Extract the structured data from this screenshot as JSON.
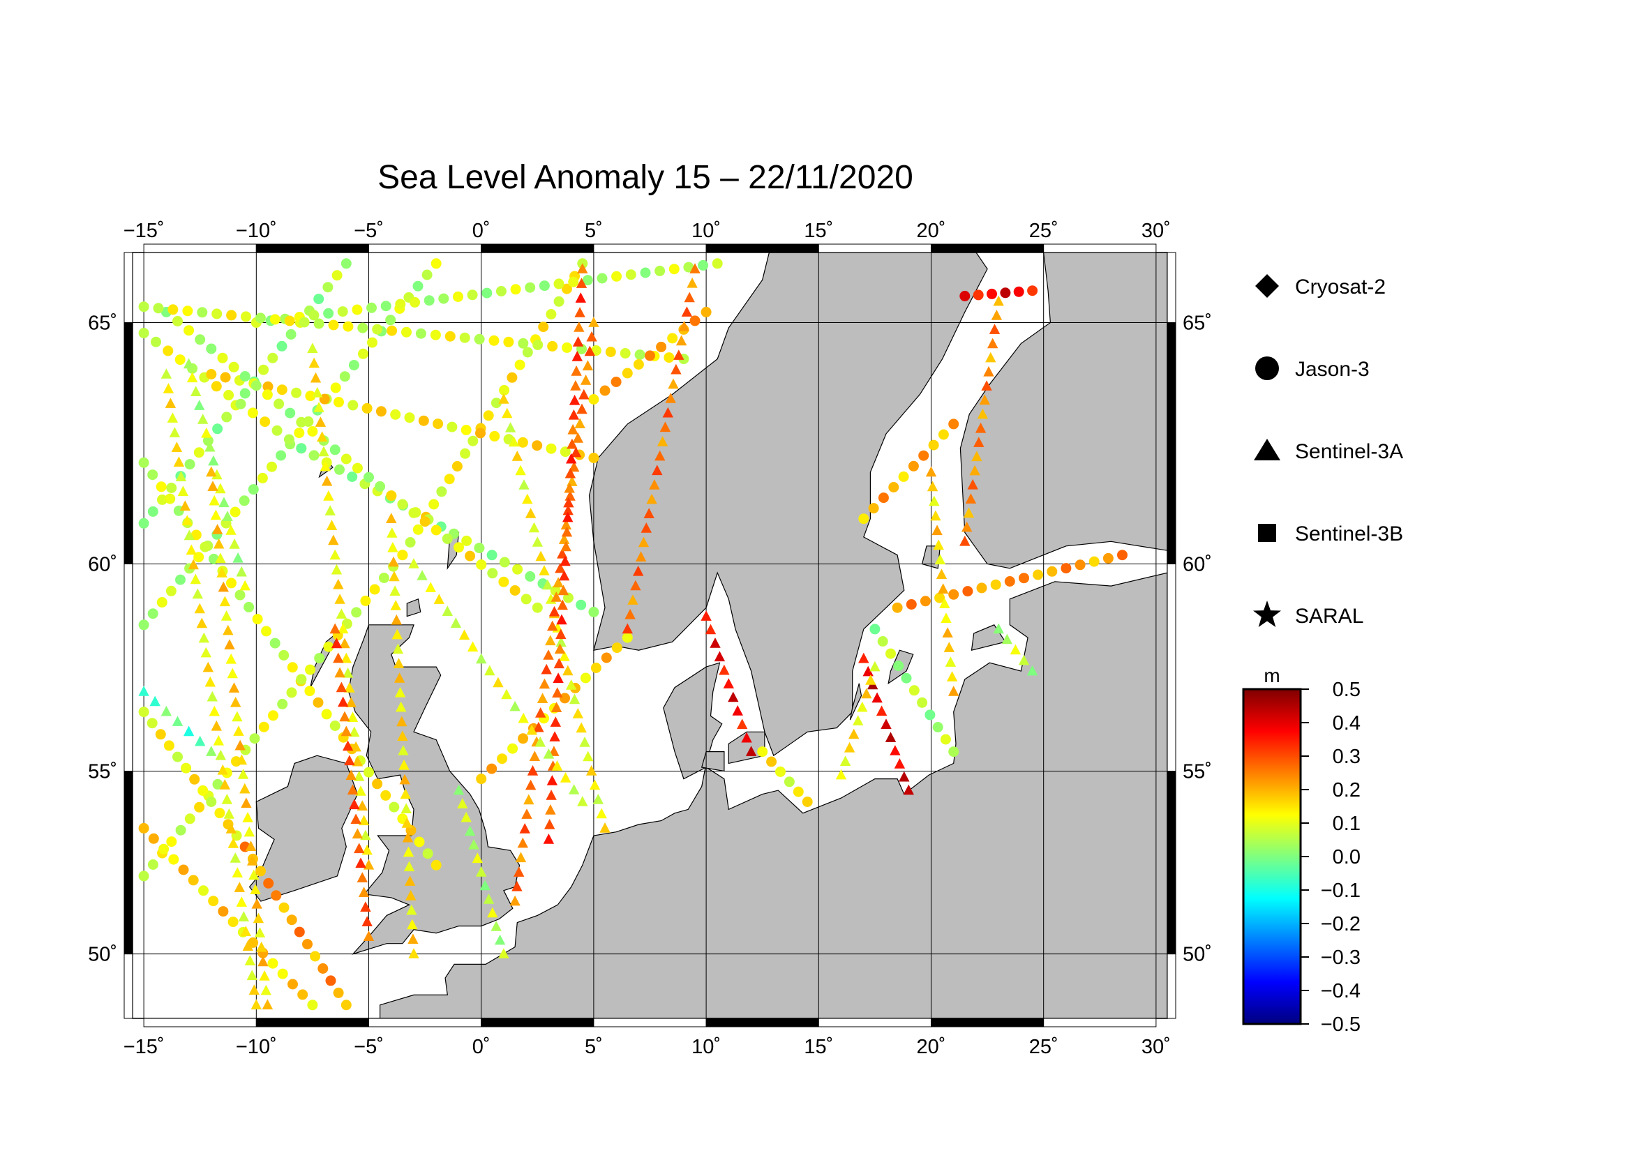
{
  "title": "Sea Level Anomaly 15 – 22/11/2020",
  "map": {
    "lon_range": [
      -15.5,
      30.5
    ],
    "lat_range": [
      48.1,
      66.3
    ],
    "lon_ticks": [
      -15,
      -10,
      -5,
      0,
      5,
      10,
      15,
      20,
      25,
      30
    ],
    "lat_ticks": [
      50,
      55,
      60,
      65
    ],
    "lon_tick_labels": [
      "−15˚",
      "−10˚",
      "−5˚",
      "0˚",
      "5˚",
      "10˚",
      "15˚",
      "20˚",
      "25˚",
      "30˚"
    ],
    "lat_tick_labels": [
      "50˚",
      "55˚",
      "60˚",
      "65˚"
    ],
    "land_color": "#bdbdbd",
    "sea_color": "#ffffff",
    "grid": true
  },
  "legend": {
    "items": [
      {
        "label": "Cryosat-2",
        "symbol": "diamond-icon"
      },
      {
        "label": "Jason-3",
        "symbol": "circle-icon"
      },
      {
        "label": "Sentinel-3A",
        "symbol": "triangle-icon"
      },
      {
        "label": "Sentinel-3B",
        "symbol": "square-icon"
      },
      {
        "label": "SARAL",
        "symbol": "star-icon"
      }
    ]
  },
  "colorbar": {
    "unit": "m",
    "min": -0.5,
    "max": 0.5,
    "tick_labels": [
      "0.5",
      "0.4",
      "0.3",
      "0.2",
      "0.1",
      "0.0",
      "−0.1",
      "−0.2",
      "−0.3",
      "−0.4",
      "−0.5"
    ],
    "colors": [
      "#00007f",
      "#0000ff",
      "#007fff",
      "#00ffff",
      "#7fff7f",
      "#ffff00",
      "#ff7f00",
      "#ff0000",
      "#7f0000"
    ]
  },
  "chart_data": {
    "type": "scatter",
    "title": "Sea Level Anomaly 15 – 22/11/2020",
    "xlabel": "",
    "ylabel": "",
    "xlim": [
      -15.5,
      30.5
    ],
    "ylim": [
      48.1,
      66.3
    ],
    "series": [
      {
        "name": "Jason-3",
        "marker": "circle",
        "tracks": [
          {
            "from": [
              -15.0,
              52.2
            ],
            "to": [
              -3.5,
              60.2
            ],
            "sla": 0.1
          },
          {
            "from": [
              -3.5,
              60.2
            ],
            "to": [
              4.5,
              66.1
            ],
            "sla": 0.12
          },
          {
            "from": [
              -15.0,
              58.6
            ],
            "to": [
              -2.0,
              66.1
            ],
            "sla": 0.06
          },
          {
            "from": [
              -15.0,
              60.9
            ],
            "to": [
              -6.0,
              66.1
            ],
            "sla": 0.04
          },
          {
            "from": [
              -15.0,
              64.8
            ],
            "to": [
              -8.0,
              62.5
            ],
            "sla": 0.1
          },
          {
            "from": [
              -8.0,
              62.5
            ],
            "to": [
              5.0,
              58.9
            ],
            "sla": 0.04
          },
          {
            "from": [
              -12.0,
              64.0
            ],
            "to": [
              5.0,
              62.3
            ],
            "sla": 0.14
          },
          {
            "from": [
              -15.0,
              62.2
            ],
            "to": [
              -8.0,
              57.3
            ],
            "sla": 0.08
          },
          {
            "from": [
              -8.0,
              57.3
            ],
            "to": [
              -2.0,
              52.5
            ],
            "sla": 0.13
          },
          {
            "from": [
              -15.0,
              56.5
            ],
            "to": [
              -10.5,
              53.0
            ],
            "sla": 0.12
          },
          {
            "from": [
              -10.5,
              53.0
            ],
            "to": [
              -6.0,
              48.5
            ],
            "sla": 0.22
          },
          {
            "from": [
              -14.0,
              65.2
            ],
            "to": [
              -4.0,
              61.5
            ],
            "sla": 0.06
          },
          {
            "from": [
              -4.0,
              61.5
            ],
            "to": [
              2.5,
              59.0
            ],
            "sla": 0.12
          },
          {
            "from": [
              0.0,
              54.8
            ],
            "to": [
              6.5,
              58.3
            ],
            "sla": 0.17
          },
          {
            "from": [
              -10.0,
              65.0
            ],
            "to": [
              10.5,
              66.1
            ],
            "sla": 0.06
          },
          {
            "from": [
              -15.0,
              65.3
            ],
            "to": [
              9.0,
              64.3
            ],
            "sla": 0.1
          },
          {
            "from": [
              5.0,
              63.5
            ],
            "to": [
              10.0,
              65.2
            ],
            "sla": 0.2
          },
          {
            "from": [
              17.0,
              61.0
            ],
            "to": [
              21.0,
              63.0
            ],
            "sla": 0.2
          },
          {
            "from": [
              18.5,
              59.0
            ],
            "to": [
              28.5,
              60.2
            ],
            "sla": 0.22
          },
          {
            "from": [
              21.5,
              65.5
            ],
            "to": [
              24.5,
              65.6
            ],
            "sla": 0.38
          },
          {
            "from": [
              -7.5,
              48.5
            ],
            "to": [
              -15.0,
              53.5
            ],
            "sla": 0.16
          },
          {
            "from": [
              12.5,
              55.5
            ],
            "to": [
              14.5,
              54.2
            ],
            "sla": 0.12
          },
          {
            "from": [
              17.5,
              58.5
            ],
            "to": [
              21.0,
              55.5
            ],
            "sla": 0.04
          }
        ]
      },
      {
        "name": "Sentinel-3A",
        "marker": "triangle",
        "tracks": [
          {
            "from": [
              -14.0,
              64.0
            ],
            "to": [
              -10.0,
              48.5
            ],
            "sla": 0.13
          },
          {
            "from": [
              -13.0,
              64.2
            ],
            "to": [
              -10.5,
              59.5
            ],
            "sla": 0.06
          },
          {
            "from": [
              -12.0,
              62.0
            ],
            "to": [
              -9.5,
              48.5
            ],
            "sla": 0.16
          },
          {
            "from": [
              -7.5,
              64.5
            ],
            "to": [
              -5.0,
              52.5
            ],
            "sla": 0.14
          },
          {
            "from": [
              -4.0,
              61.0
            ],
            "to": [
              -3.0,
              50.0
            ],
            "sla": 0.15
          },
          {
            "from": [
              -6.5,
              58.5
            ],
            "to": [
              -5.0,
              50.5
            ],
            "sla": 0.28
          },
          {
            "from": [
              1.0,
              63.5
            ],
            "to": [
              5.5,
              53.5
            ],
            "sla": 0.12
          },
          {
            "from": [
              5.0,
              65.0
            ],
            "to": [
              1.5,
              51.5
            ],
            "sla": 0.26
          },
          {
            "from": [
              4.5,
              66.0
            ],
            "to": [
              3.0,
              53.2
            ],
            "sla": 0.3
          },
          {
            "from": [
              9.5,
              66.0
            ],
            "to": [
              6.5,
              58.5
            ],
            "sla": 0.26
          },
          {
            "from": [
              10.0,
              58.8
            ],
            "to": [
              12.0,
              55.5
            ],
            "sla": 0.38
          },
          {
            "from": [
              17.0,
              57.8
            ],
            "to": [
              19.0,
              54.5
            ],
            "sla": 0.4
          },
          {
            "from": [
              17.5,
              57.6
            ],
            "to": [
              16.0,
              54.9
            ],
            "sla": 0.14
          },
          {
            "from": [
              20.0,
              62.0
            ],
            "to": [
              21.0,
              57.0
            ],
            "sla": 0.16
          },
          {
            "from": [
              23.0,
              65.4
            ],
            "to": [
              21.5,
              60.5
            ],
            "sla": 0.24
          },
          {
            "from": [
              23.0,
              58.5
            ],
            "to": [
              24.5,
              57.5
            ],
            "sla": 0.06
          },
          {
            "from": [
              -15.0,
              57.0
            ],
            "to": [
              -12.0,
              55.5
            ],
            "sla": -0.04
          },
          {
            "from": [
              -3.0,
              60.0
            ],
            "to": [
              4.5,
              54.2
            ],
            "sla": 0.1
          },
          {
            "from": [
              -1.0,
              54.5
            ],
            "to": [
              1.0,
              50.0
            ],
            "sla": 0.06
          }
        ]
      }
    ]
  }
}
